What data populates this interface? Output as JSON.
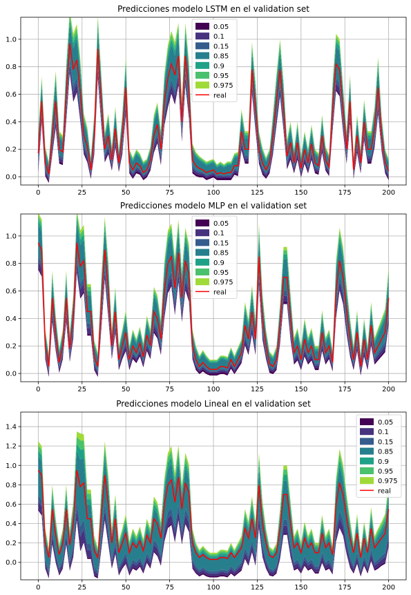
{
  "quantile_colors": {
    "0.05": "#440154",
    "0.1": "#46327e",
    "0.15": "#365c8d",
    "0.85": "#277f8e",
    "0.9": "#1fa187",
    "0.95": "#4ac16d",
    "0.975": "#a0da39",
    "real": "#ff0000"
  },
  "chart_data": [
    {
      "type": "area",
      "title": "Predicciones modelo LSTM en el validation set",
      "xlim": [
        -10,
        210
      ],
      "ylim": [
        -0.06,
        1.16
      ],
      "xticks": [
        0,
        25,
        50,
        75,
        100,
        125,
        150,
        175,
        200
      ],
      "yticks": [
        0.0,
        0.2,
        0.4,
        0.6,
        0.8,
        1.0
      ],
      "ytick_labels": [
        "0.0",
        "0.2",
        "0.4",
        "0.6",
        "0.8",
        "1.0"
      ],
      "grid": true,
      "legend": {
        "placement": "upper-center",
        "entries": [
          "0.05",
          "0.1",
          "0.15",
          "0.85",
          "0.9",
          "0.95",
          "0.975",
          "real"
        ]
      },
      "x": [
        0,
        2,
        4,
        6,
        8,
        10,
        12,
        14,
        16,
        18,
        20,
        22,
        24,
        26,
        28,
        30,
        32,
        34,
        36,
        38,
        40,
        42,
        44,
        46,
        48,
        50,
        52,
        54,
        56,
        58,
        60,
        62,
        64,
        66,
        68,
        70,
        72,
        74,
        76,
        78,
        80,
        82,
        84,
        86,
        88,
        90,
        92,
        94,
        96,
        98,
        100,
        102,
        104,
        106,
        108,
        110,
        112,
        114,
        116,
        118,
        120,
        122,
        124,
        126,
        128,
        130,
        132,
        134,
        136,
        138,
        140,
        142,
        144,
        146,
        148,
        150,
        152,
        154,
        156,
        158,
        160,
        162,
        164,
        166,
        168,
        170,
        172,
        174,
        176,
        178,
        180,
        182,
        184,
        186,
        188,
        190,
        192,
        194,
        196,
        198,
        200
      ],
      "real": [
        0.17,
        0.55,
        0.1,
        0.02,
        0.3,
        0.55,
        0.2,
        0.18,
        0.6,
        0.97,
        0.78,
        0.85,
        0.62,
        0.3,
        0.22,
        0.05,
        0.3,
        0.93,
        0.55,
        0.2,
        0.3,
        0.12,
        0.35,
        0.1,
        0.3,
        0.65,
        0.1,
        0.05,
        0.1,
        0.08,
        0.03,
        0.05,
        0.12,
        0.3,
        0.38,
        0.2,
        0.55,
        0.72,
        0.82,
        0.74,
        0.88,
        0.4,
        0.88,
        0.62,
        0.12,
        0.08,
        0.06,
        0.05,
        0.03,
        0.04,
        0.05,
        0.02,
        0.03,
        0.02,
        0.03,
        0.03,
        0.08,
        0.08,
        0.33,
        0.2,
        0.2,
        0.78,
        0.5,
        0.2,
        0.1,
        0.05,
        0.1,
        0.3,
        0.55,
        0.78,
        0.5,
        0.15,
        0.25,
        0.1,
        0.25,
        0.06,
        0.2,
        0.1,
        0.24,
        0.1,
        0.08,
        0.3,
        0.12,
        0.07,
        0.5,
        0.82,
        0.78,
        0.48,
        0.2,
        0.55,
        0.05,
        0.3,
        0.1,
        0.4,
        0.2,
        0.2,
        0.35,
        0.65,
        0.3,
        0.1,
        0.04
      ],
      "band": [
        0.14,
        0.16,
        0.1,
        0.07,
        0.14,
        0.2,
        0.11,
        0.1,
        0.2,
        0.22,
        0.24,
        0.24,
        0.22,
        0.14,
        0.12,
        0.07,
        0.14,
        0.22,
        0.18,
        0.1,
        0.14,
        0.08,
        0.14,
        0.07,
        0.14,
        0.2,
        0.08,
        0.07,
        0.08,
        0.07,
        0.06,
        0.06,
        0.08,
        0.13,
        0.14,
        0.12,
        0.18,
        0.22,
        0.22,
        0.22,
        0.22,
        0.15,
        0.22,
        0.2,
        0.1,
        0.08,
        0.07,
        0.06,
        0.06,
        0.06,
        0.06,
        0.05,
        0.06,
        0.05,
        0.06,
        0.06,
        0.07,
        0.08,
        0.14,
        0.11,
        0.11,
        0.18,
        0.17,
        0.11,
        0.09,
        0.07,
        0.08,
        0.14,
        0.18,
        0.2,
        0.17,
        0.1,
        0.13,
        0.08,
        0.13,
        0.07,
        0.11,
        0.08,
        0.12,
        0.08,
        0.07,
        0.13,
        0.08,
        0.07,
        0.17,
        0.2,
        0.2,
        0.16,
        0.11,
        0.17,
        0.07,
        0.13,
        0.08,
        0.14,
        0.11,
        0.11,
        0.14,
        0.2,
        0.12,
        0.08,
        0.07
      ],
      "shift": 0.02
    },
    {
      "type": "area",
      "title": "Predicciones modelo MLP en el validation set",
      "xlim": [
        -10,
        210
      ],
      "ylim": [
        -0.06,
        1.16
      ],
      "xticks": [
        0,
        25,
        50,
        75,
        100,
        125,
        150,
        175,
        200
      ],
      "yticks": [
        0.0,
        0.2,
        0.4,
        0.6,
        0.8,
        1.0
      ],
      "ytick_labels": [
        "0.0",
        "0.2",
        "0.4",
        "0.6",
        "0.8",
        "1.0"
      ],
      "grid": true,
      "legend": {
        "placement": "upper-center",
        "entries": [
          "0.05",
          "0.1",
          "0.15",
          "0.85",
          "0.9",
          "0.95",
          "0.975",
          "real"
        ]
      },
      "x": [
        0,
        2,
        4,
        6,
        8,
        10,
        12,
        14,
        16,
        18,
        20,
        22,
        24,
        26,
        28,
        30,
        32,
        34,
        36,
        38,
        40,
        42,
        44,
        46,
        48,
        50,
        52,
        54,
        56,
        58,
        60,
        62,
        64,
        66,
        68,
        70,
        72,
        74,
        76,
        78,
        80,
        82,
        84,
        86,
        88,
        90,
        92,
        94,
        96,
        98,
        100,
        102,
        104,
        106,
        108,
        110,
        112,
        114,
        116,
        118,
        120,
        122,
        124,
        126,
        128,
        130,
        132,
        134,
        136,
        138,
        140,
        142,
        144,
        146,
        148,
        150,
        152,
        154,
        156,
        158,
        160,
        162,
        164,
        166,
        168,
        170,
        172,
        174,
        176,
        178,
        180,
        182,
        184,
        186,
        188,
        190,
        192,
        194,
        196,
        198,
        200
      ],
      "real": [
        0.95,
        0.9,
        0.2,
        0.05,
        0.55,
        0.28,
        0.08,
        0.2,
        0.55,
        0.18,
        0.4,
        0.95,
        0.78,
        0.82,
        0.45,
        0.45,
        0.12,
        0.05,
        0.5,
        0.9,
        0.6,
        0.2,
        0.45,
        0.1,
        0.2,
        0.3,
        0.1,
        0.2,
        0.15,
        0.22,
        0.12,
        0.28,
        0.2,
        0.45,
        0.4,
        0.25,
        0.6,
        0.8,
        0.85,
        0.62,
        0.88,
        0.55,
        0.82,
        0.72,
        0.2,
        0.1,
        0.05,
        0.08,
        0.05,
        0.03,
        0.03,
        0.03,
        0.05,
        0.05,
        0.04,
        0.1,
        0.05,
        0.1,
        0.15,
        0.35,
        0.25,
        0.45,
        0.25,
        0.85,
        0.4,
        0.2,
        0.07,
        0.05,
        0.1,
        0.35,
        0.7,
        0.7,
        0.4,
        0.15,
        0.2,
        0.1,
        0.25,
        0.15,
        0.2,
        0.1,
        0.1,
        0.3,
        0.15,
        0.2,
        0.08,
        0.6,
        0.82,
        0.7,
        0.45,
        0.25,
        0.1,
        0.3,
        0.05,
        0.25,
        0.1,
        0.35,
        0.15,
        0.2,
        0.25,
        0.3,
        0.55
      ],
      "band": [
        0.2,
        0.2,
        0.1,
        0.08,
        0.18,
        0.12,
        0.08,
        0.1,
        0.18,
        0.1,
        0.15,
        0.22,
        0.24,
        0.24,
        0.18,
        0.18,
        0.1,
        0.08,
        0.18,
        0.22,
        0.2,
        0.1,
        0.16,
        0.08,
        0.1,
        0.14,
        0.08,
        0.1,
        0.08,
        0.1,
        0.08,
        0.12,
        0.1,
        0.16,
        0.15,
        0.12,
        0.2,
        0.22,
        0.22,
        0.2,
        0.22,
        0.18,
        0.22,
        0.2,
        0.1,
        0.08,
        0.06,
        0.07,
        0.06,
        0.05,
        0.05,
        0.05,
        0.06,
        0.06,
        0.06,
        0.07,
        0.06,
        0.07,
        0.08,
        0.15,
        0.12,
        0.17,
        0.12,
        0.22,
        0.16,
        0.1,
        0.07,
        0.06,
        0.08,
        0.14,
        0.2,
        0.2,
        0.16,
        0.09,
        0.11,
        0.08,
        0.13,
        0.09,
        0.11,
        0.08,
        0.08,
        0.14,
        0.09,
        0.1,
        0.07,
        0.2,
        0.22,
        0.2,
        0.17,
        0.13,
        0.08,
        0.14,
        0.07,
        0.13,
        0.08,
        0.15,
        0.09,
        0.11,
        0.13,
        0.15,
        0.2
      ],
      "shift": 0.02
    },
    {
      "type": "area",
      "title": "Predicciones modelo Lineal en el validation set",
      "xlim": [
        -10,
        210
      ],
      "ylim": [
        -0.18,
        1.55
      ],
      "xticks": [
        0,
        25,
        50,
        75,
        100,
        125,
        150,
        175,
        200
      ],
      "yticks": [
        0.0,
        0.2,
        0.4,
        0.6,
        0.8,
        1.0,
        1.2,
        1.4
      ],
      "ytick_labels": [
        "0.0",
        "0.2",
        "0.4",
        "0.6",
        "0.8",
        "1.0",
        "1.2",
        "1.4"
      ],
      "grid": true,
      "legend": {
        "placement": "upper-right",
        "entries": [
          "0.05",
          "0.1",
          "0.15",
          "0.85",
          "0.9",
          "0.95",
          "0.975",
          "real"
        ]
      },
      "x": [
        0,
        2,
        4,
        6,
        8,
        10,
        12,
        14,
        16,
        18,
        20,
        22,
        24,
        26,
        28,
        30,
        32,
        34,
        36,
        38,
        40,
        42,
        44,
        46,
        48,
        50,
        52,
        54,
        56,
        58,
        60,
        62,
        64,
        66,
        68,
        70,
        72,
        74,
        76,
        78,
        80,
        82,
        84,
        86,
        88,
        90,
        92,
        94,
        96,
        98,
        100,
        102,
        104,
        106,
        108,
        110,
        112,
        114,
        116,
        118,
        120,
        122,
        124,
        126,
        128,
        130,
        132,
        134,
        136,
        138,
        140,
        142,
        144,
        146,
        148,
        150,
        152,
        154,
        156,
        158,
        160,
        162,
        164,
        166,
        168,
        170,
        172,
        174,
        176,
        178,
        180,
        182,
        184,
        186,
        188,
        190,
        192,
        194,
        196,
        198,
        200
      ],
      "real": [
        0.95,
        0.9,
        0.2,
        0.05,
        0.55,
        0.28,
        0.08,
        0.2,
        0.55,
        0.18,
        0.4,
        0.95,
        0.78,
        0.82,
        0.45,
        0.45,
        0.12,
        0.05,
        0.5,
        0.9,
        0.6,
        0.2,
        0.45,
        0.1,
        0.2,
        0.3,
        0.1,
        0.2,
        0.15,
        0.22,
        0.12,
        0.28,
        0.2,
        0.45,
        0.4,
        0.25,
        0.6,
        0.8,
        0.85,
        0.62,
        0.88,
        0.55,
        0.82,
        0.72,
        0.2,
        0.1,
        0.05,
        0.08,
        0.05,
        0.03,
        0.03,
        0.03,
        0.05,
        0.05,
        0.04,
        0.1,
        0.05,
        0.1,
        0.15,
        0.35,
        0.25,
        0.45,
        0.25,
        0.8,
        0.4,
        0.2,
        0.07,
        0.05,
        0.1,
        0.35,
        0.7,
        0.7,
        0.4,
        0.15,
        0.2,
        0.1,
        0.25,
        0.15,
        0.2,
        0.1,
        0.1,
        0.3,
        0.15,
        0.2,
        0.08,
        0.6,
        0.82,
        0.7,
        0.45,
        0.25,
        0.1,
        0.3,
        0.05,
        0.25,
        0.1,
        0.35,
        0.15,
        0.2,
        0.25,
        0.3,
        0.55
      ],
      "band": [
        0.35,
        0.35,
        0.2,
        0.15,
        0.3,
        0.22,
        0.15,
        0.2,
        0.3,
        0.2,
        0.28,
        0.45,
        0.6,
        0.55,
        0.35,
        0.35,
        0.2,
        0.15,
        0.3,
        0.4,
        0.35,
        0.2,
        0.3,
        0.17,
        0.2,
        0.25,
        0.17,
        0.2,
        0.17,
        0.2,
        0.17,
        0.22,
        0.2,
        0.28,
        0.27,
        0.22,
        0.32,
        0.38,
        0.4,
        0.35,
        0.38,
        0.3,
        0.36,
        0.34,
        0.2,
        0.15,
        0.13,
        0.14,
        0.13,
        0.12,
        0.12,
        0.12,
        0.13,
        0.13,
        0.13,
        0.15,
        0.13,
        0.15,
        0.17,
        0.25,
        0.22,
        0.28,
        0.22,
        0.38,
        0.28,
        0.2,
        0.14,
        0.13,
        0.15,
        0.25,
        0.35,
        0.35,
        0.28,
        0.17,
        0.2,
        0.15,
        0.22,
        0.17,
        0.2,
        0.15,
        0.15,
        0.24,
        0.17,
        0.2,
        0.14,
        0.32,
        0.4,
        0.36,
        0.3,
        0.24,
        0.15,
        0.25,
        0.13,
        0.22,
        0.15,
        0.27,
        0.17,
        0.2,
        0.22,
        0.25,
        0.32
      ],
      "shift": -0.05
    }
  ]
}
